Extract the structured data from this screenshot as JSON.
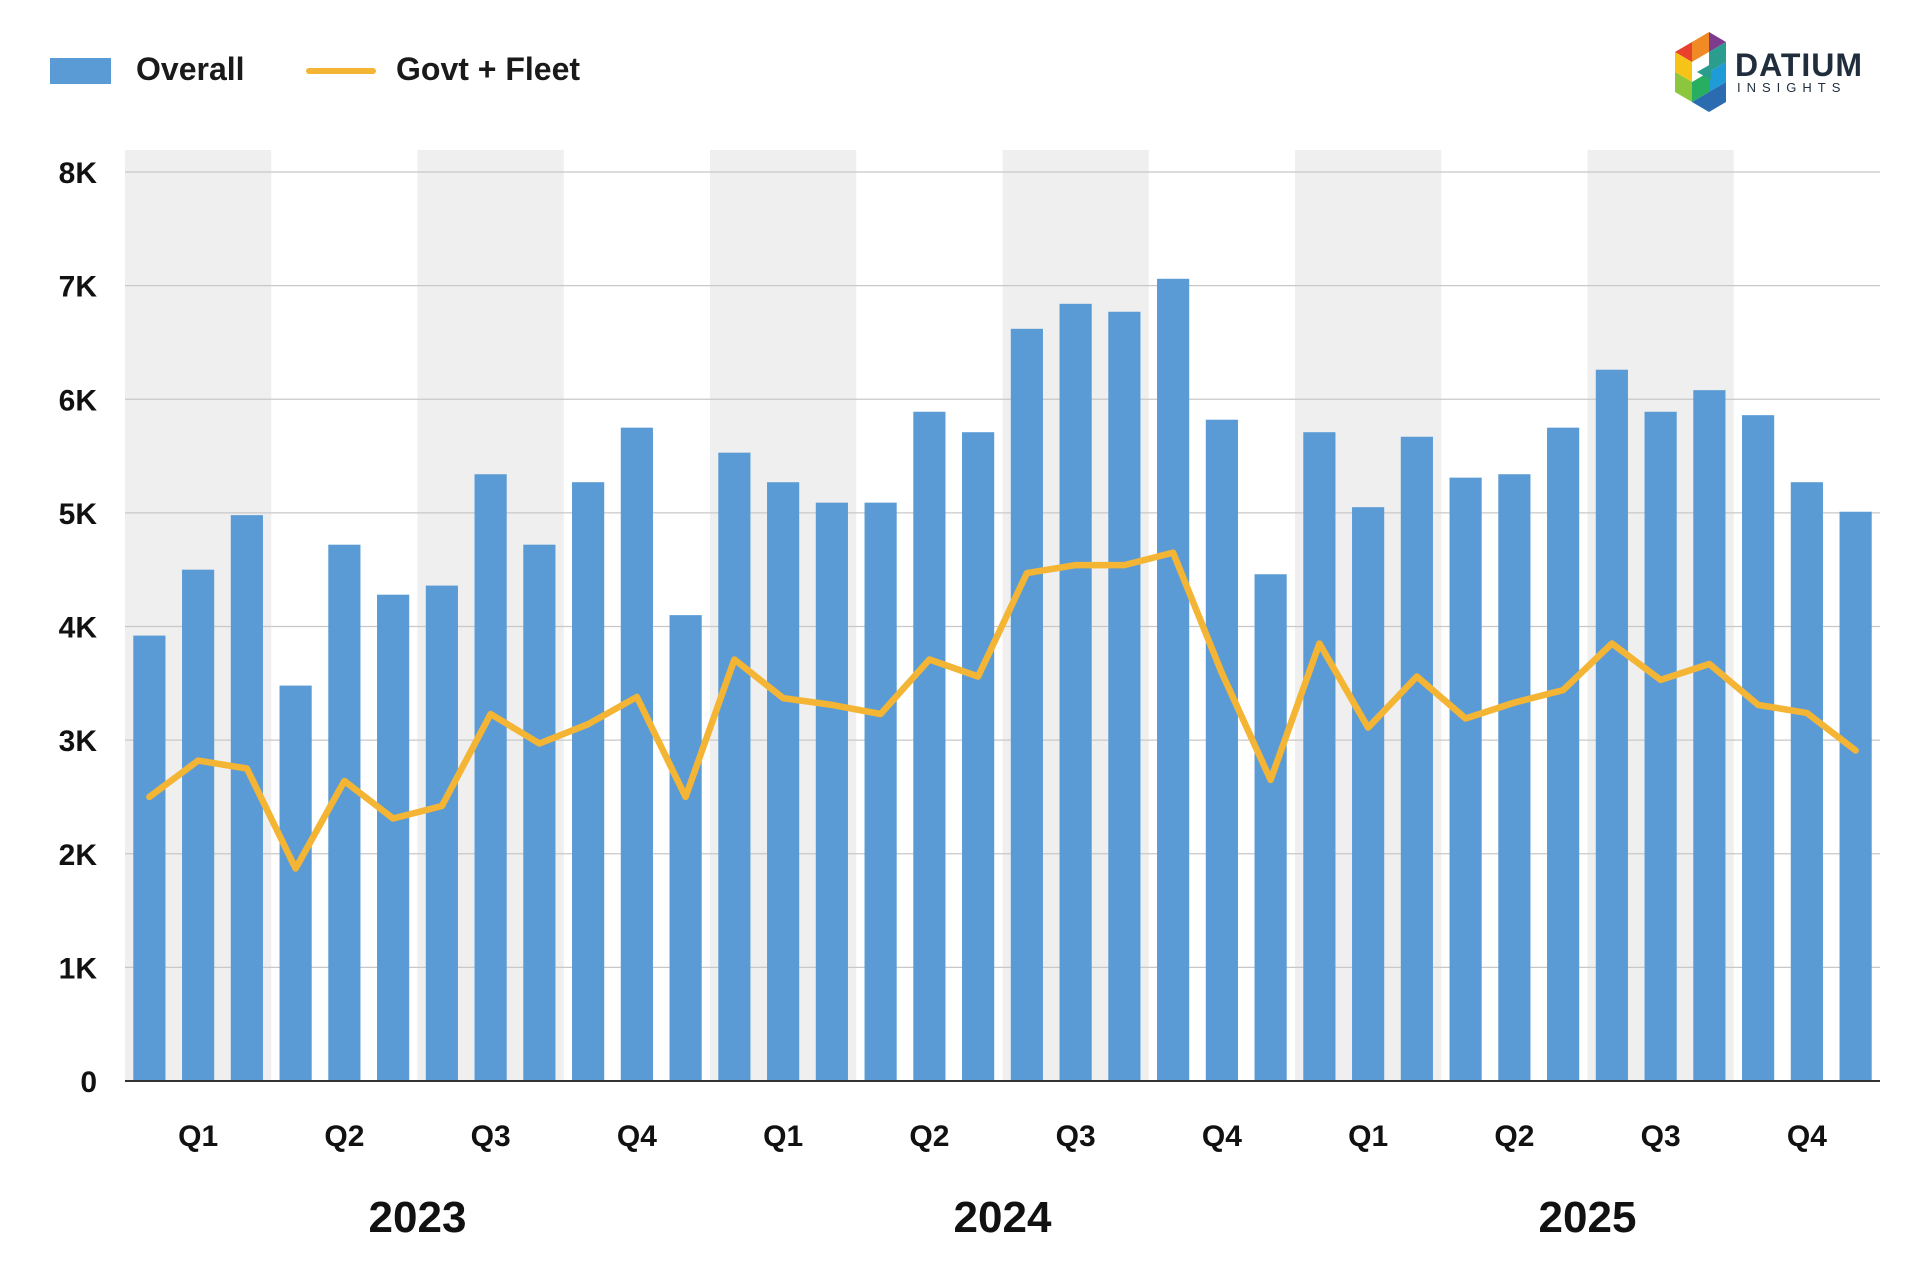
{
  "logo": {
    "name": "DATIUM",
    "tagline": "INSIGHTS"
  },
  "colors": {
    "overall": "#5b9bd5",
    "govt_fleet": "#f4b434",
    "band": "#efefef",
    "grid": "#c8c8c8",
    "axis": "#333333"
  },
  "chart_data": {
    "type": "bar",
    "legend_position": "top-left",
    "grid": true,
    "ylim": [
      0,
      8000
    ],
    "yticks": [
      {
        "value": 0,
        "label": "0"
      },
      {
        "value": 1000,
        "label": "1K"
      },
      {
        "value": 2000,
        "label": "2K"
      },
      {
        "value": 3000,
        "label": "3K"
      },
      {
        "value": 4000,
        "label": "4K"
      },
      {
        "value": 5000,
        "label": "5K"
      },
      {
        "value": 6000,
        "label": "6K"
      },
      {
        "value": 7000,
        "label": "7K"
      },
      {
        "value": 8000,
        "label": "8K"
      }
    ],
    "quarters": [
      {
        "label": "Q1"
      },
      {
        "label": "Q2"
      },
      {
        "label": "Q3"
      },
      {
        "label": "Q4"
      },
      {
        "label": "Q1"
      },
      {
        "label": "Q2"
      },
      {
        "label": "Q3"
      },
      {
        "label": "Q4"
      },
      {
        "label": "Q1"
      },
      {
        "label": "Q2"
      },
      {
        "label": "Q3"
      },
      {
        "label": "Q4"
      }
    ],
    "years": [
      {
        "label": "2023"
      },
      {
        "label": "2024"
      },
      {
        "label": "2025"
      }
    ],
    "series": [
      {
        "name": "Overall",
        "type": "bar",
        "values": [
          3920,
          4500,
          4980,
          3480,
          4720,
          4280,
          4360,
          5340,
          4720,
          5270,
          5750,
          4100,
          5530,
          5270,
          5090,
          5090,
          5890,
          5710,
          6620,
          6840,
          6770,
          7060,
          5820,
          4460,
          5710,
          5050,
          5670,
          5310,
          5340,
          5750,
          6260,
          5890,
          6080,
          5860,
          5270,
          5010
        ]
      },
      {
        "name": "Govt + Fleet",
        "type": "line",
        "values": [
          2500,
          2820,
          2750,
          1870,
          2640,
          2310,
          2420,
          3230,
          2970,
          3140,
          3380,
          2500,
          3710,
          3370,
          3310,
          3230,
          3710,
          3560,
          4470,
          4540,
          4540,
          4650,
          3590,
          2650,
          3850,
          3110,
          3560,
          3190,
          3330,
          3440,
          3850,
          3530,
          3670,
          3310,
          3240,
          2910
        ]
      }
    ]
  }
}
